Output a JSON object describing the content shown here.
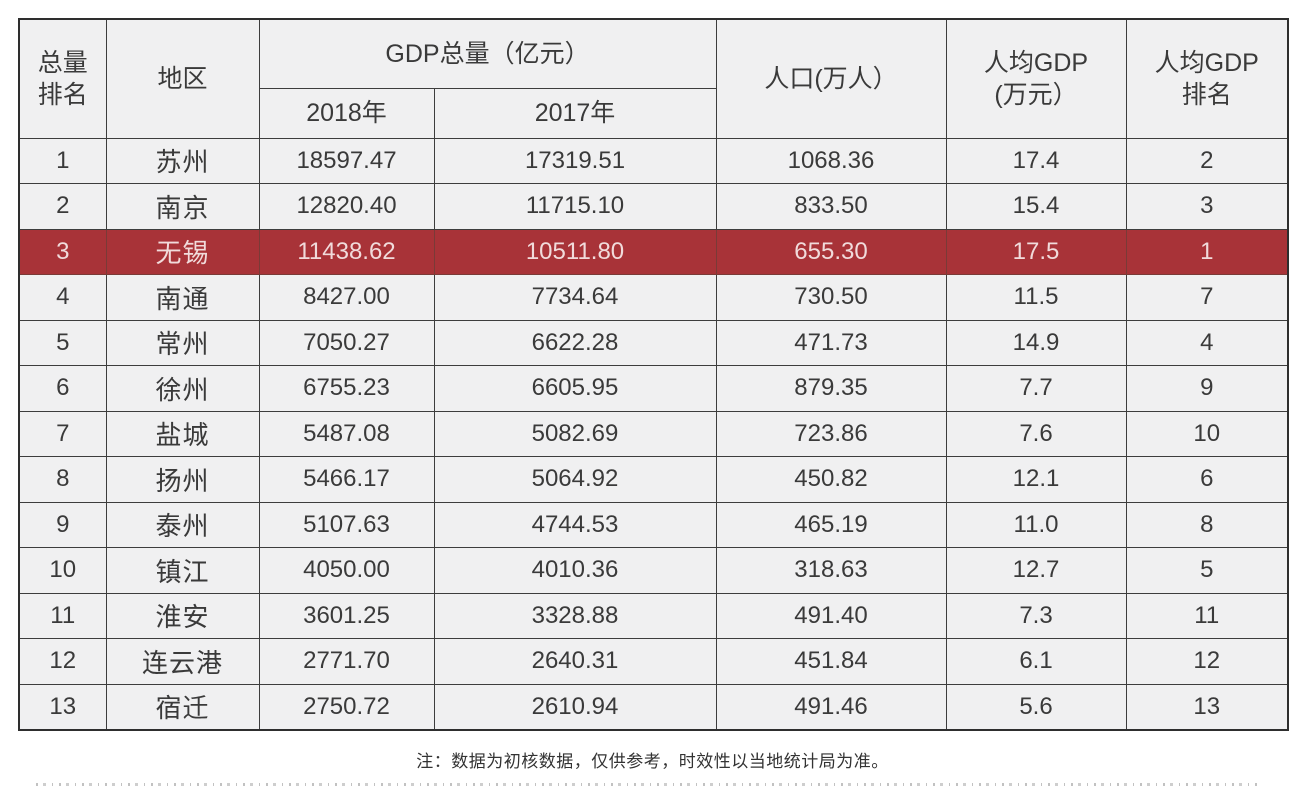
{
  "table": {
    "headers": {
      "rank_total": "总量\n排名",
      "region": "地区",
      "gdp_group": "GDP总量（亿元）",
      "year_2018": "2018年",
      "year_2017": "2017年",
      "population": "人口(万人）",
      "per_capita_gdp": "人均GDP\n(万元）",
      "per_capita_rank": "人均GDP\n排名"
    },
    "rows": [
      {
        "rank": "1",
        "region": "苏州",
        "gdp2018": "18597.47",
        "gdp2017": "17319.51",
        "population": "1068.36",
        "per_capita": "17.4",
        "pc_rank": "2",
        "highlighted": false
      },
      {
        "rank": "2",
        "region": "南京",
        "gdp2018": "12820.40",
        "gdp2017": "11715.10",
        "population": "833.50",
        "per_capita": "15.4",
        "pc_rank": "3",
        "highlighted": false
      },
      {
        "rank": "3",
        "region": "无锡",
        "gdp2018": "11438.62",
        "gdp2017": "10511.80",
        "population": "655.30",
        "per_capita": "17.5",
        "pc_rank": "1",
        "highlighted": true
      },
      {
        "rank": "4",
        "region": "南通",
        "gdp2018": "8427.00",
        "gdp2017": "7734.64",
        "population": "730.50",
        "per_capita": "11.5",
        "pc_rank": "7",
        "highlighted": false
      },
      {
        "rank": "5",
        "region": "常州",
        "gdp2018": "7050.27",
        "gdp2017": "6622.28",
        "population": "471.73",
        "per_capita": "14.9",
        "pc_rank": "4",
        "highlighted": false
      },
      {
        "rank": "6",
        "region": "徐州",
        "gdp2018": "6755.23",
        "gdp2017": "6605.95",
        "population": "879.35",
        "per_capita": "7.7",
        "pc_rank": "9",
        "highlighted": false
      },
      {
        "rank": "7",
        "region": "盐城",
        "gdp2018": "5487.08",
        "gdp2017": "5082.69",
        "population": "723.86",
        "per_capita": "7.6",
        "pc_rank": "10",
        "highlighted": false
      },
      {
        "rank": "8",
        "region": "扬州",
        "gdp2018": "5466.17",
        "gdp2017": "5064.92",
        "population": "450.82",
        "per_capita": "12.1",
        "pc_rank": "6",
        "highlighted": false
      },
      {
        "rank": "9",
        "region": "泰州",
        "gdp2018": "5107.63",
        "gdp2017": "4744.53",
        "population": "465.19",
        "per_capita": "11.0",
        "pc_rank": "8",
        "highlighted": false
      },
      {
        "rank": "10",
        "region": "镇江",
        "gdp2018": "4050.00",
        "gdp2017": "4010.36",
        "population": "318.63",
        "per_capita": "12.7",
        "pc_rank": "5",
        "highlighted": false
      },
      {
        "rank": "11",
        "region": "淮安",
        "gdp2018": "3601.25",
        "gdp2017": "3328.88",
        "population": "491.40",
        "per_capita": "7.3",
        "pc_rank": "11",
        "highlighted": false
      },
      {
        "rank": "12",
        "region": "连云港",
        "gdp2018": "2771.70",
        "gdp2017": "2640.31",
        "population": "451.84",
        "per_capita": "6.1",
        "pc_rank": "12",
        "highlighted": false
      },
      {
        "rank": "13",
        "region": "宿迁",
        "gdp2018": "2750.72",
        "gdp2017": "2610.94",
        "population": "491.46",
        "per_capita": "5.6",
        "pc_rank": "13",
        "highlighted": false
      }
    ]
  },
  "note": "注：数据为初核数据，仅供参考，时效性以当地统计局为准。",
  "colors": {
    "highlight_row_bg": "#a83338",
    "highlight_row_text": "#f1dbdb",
    "cell_bg": "#f0f0f1",
    "border": "#3d3d3d",
    "text": "#3a3a3a"
  },
  "chart_data": {
    "type": "table",
    "title": "",
    "columns": [
      "总量排名",
      "地区",
      "GDP总量（亿元）2018年",
      "GDP总量（亿元）2017年",
      "人口(万人）",
      "人均GDP(万元）",
      "人均GDP排名"
    ],
    "rows": [
      [
        1,
        "苏州",
        18597.47,
        17319.51,
        1068.36,
        17.4,
        2
      ],
      [
        2,
        "南京",
        12820.4,
        11715.1,
        833.5,
        15.4,
        3
      ],
      [
        3,
        "无锡",
        11438.62,
        10511.8,
        655.3,
        17.5,
        1
      ],
      [
        4,
        "南通",
        8427.0,
        7734.64,
        730.5,
        11.5,
        7
      ],
      [
        5,
        "常州",
        7050.27,
        6622.28,
        471.73,
        14.9,
        4
      ],
      [
        6,
        "徐州",
        6755.23,
        6605.95,
        879.35,
        7.7,
        9
      ],
      [
        7,
        "盐城",
        5487.08,
        5082.69,
        723.86,
        7.6,
        10
      ],
      [
        8,
        "扬州",
        5466.17,
        5064.92,
        450.82,
        12.1,
        6
      ],
      [
        9,
        "泰州",
        5107.63,
        4744.53,
        465.19,
        11.0,
        8
      ],
      [
        10,
        "镇江",
        4050.0,
        4010.36,
        318.63,
        12.7,
        5
      ],
      [
        11,
        "淮安",
        3601.25,
        3328.88,
        491.4,
        7.3,
        11
      ],
      [
        12,
        "连云港",
        2771.7,
        2640.31,
        451.84,
        6.1,
        12
      ],
      [
        13,
        "宿迁",
        2750.72,
        2610.94,
        491.46,
        5.6,
        13
      ]
    ],
    "highlighted_row": "无锡",
    "footnote": "注：数据为初核数据，仅供参考，时效性以当地统计局为准。"
  }
}
